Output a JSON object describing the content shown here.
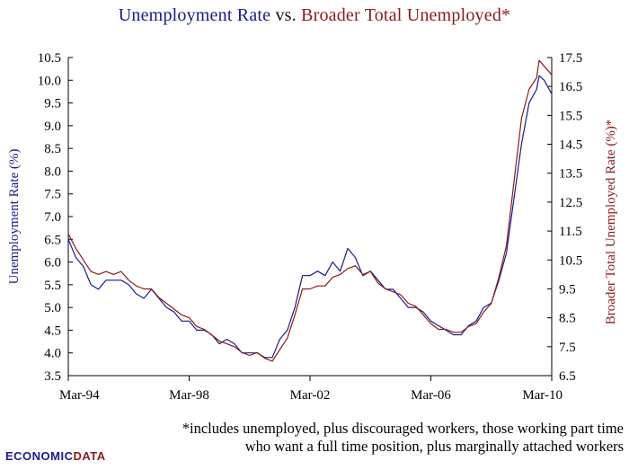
{
  "title": {
    "part_a": "Unemployment Rate",
    "part_b": " vs. ",
    "part_c": "Broader Total Unemployed*"
  },
  "footnote": {
    "line1": "*includes unemployed, plus discouraged workers, those working part time",
    "line2": "who want a full time position, plus marginally attached workers"
  },
  "logo": {
    "part_a": "ECONOMIC",
    "part_b": "DATA"
  },
  "colors": {
    "unemployment": "#1a1a8c",
    "broader": "#8b1a1a",
    "axis": "#000000"
  },
  "chart_data": {
    "type": "line",
    "xlabel": "",
    "x_tick_labels": [
      "Mar-94",
      "Mar-98",
      "Mar-02",
      "Mar-06",
      "Mar-10"
    ],
    "x_range": [
      "1994-03",
      "2010-03"
    ],
    "grid": false,
    "legend": "none",
    "left_axis": {
      "label": "Unemployment Rate (%)",
      "ylim": [
        3.5,
        10.5
      ],
      "ticks": [
        "3.5",
        "4.0",
        "4.5",
        "5.0",
        "5.5",
        "6.0",
        "6.5",
        "7.0",
        "7.5",
        "8.0",
        "8.5",
        "9.0",
        "9.5",
        "10.0",
        "10.5"
      ]
    },
    "right_axis": {
      "label": "Broader Total Unemployed Rate (%)*",
      "ylim": [
        6.5,
        17.5
      ],
      "ticks": [
        "6.5",
        "7.5",
        "8.5",
        "9.5",
        "10.5",
        "11.5",
        "12.5",
        "13.5",
        "14.5",
        "15.5",
        "16.5",
        "17.5"
      ]
    },
    "series": [
      {
        "name": "Unemployment Rate",
        "axis": "left",
        "x": [
          "1994-03",
          "1994-06",
          "1994-09",
          "1994-12",
          "1995-03",
          "1995-06",
          "1995-09",
          "1995-12",
          "1996-03",
          "1996-06",
          "1996-09",
          "1996-12",
          "1997-03",
          "1997-06",
          "1997-09",
          "1997-12",
          "1998-03",
          "1998-06",
          "1998-09",
          "1998-12",
          "1999-03",
          "1999-06",
          "1999-09",
          "1999-12",
          "2000-03",
          "2000-06",
          "2000-09",
          "2000-12",
          "2001-03",
          "2001-06",
          "2001-09",
          "2001-12",
          "2002-03",
          "2002-06",
          "2002-09",
          "2002-12",
          "2003-03",
          "2003-06",
          "2003-09",
          "2003-12",
          "2004-03",
          "2004-06",
          "2004-09",
          "2004-12",
          "2005-03",
          "2005-06",
          "2005-09",
          "2005-12",
          "2006-03",
          "2006-06",
          "2006-09",
          "2006-12",
          "2007-03",
          "2007-06",
          "2007-09",
          "2007-12",
          "2008-03",
          "2008-06",
          "2008-09",
          "2008-12",
          "2009-03",
          "2009-06",
          "2009-09",
          "2009-10",
          "2009-12",
          "2010-03"
        ],
        "values": [
          6.5,
          6.1,
          5.9,
          5.5,
          5.4,
          5.6,
          5.6,
          5.6,
          5.5,
          5.3,
          5.2,
          5.4,
          5.2,
          5.0,
          4.9,
          4.7,
          4.7,
          4.5,
          4.5,
          4.4,
          4.2,
          4.3,
          4.2,
          4.0,
          4.0,
          4.0,
          3.9,
          3.9,
          4.3,
          4.5,
          5.0,
          5.7,
          5.7,
          5.8,
          5.7,
          6.0,
          5.8,
          6.3,
          6.1,
          5.7,
          5.8,
          5.6,
          5.4,
          5.4,
          5.2,
          5.0,
          5.0,
          4.9,
          4.7,
          4.6,
          4.5,
          4.4,
          4.4,
          4.6,
          4.7,
          5.0,
          5.1,
          5.6,
          6.2,
          7.4,
          8.6,
          9.5,
          9.8,
          10.1,
          10.0,
          9.7
        ]
      },
      {
        "name": "Broader Total Unemployed",
        "axis": "right",
        "x": [
          "1994-03",
          "1994-06",
          "1994-09",
          "1994-12",
          "1995-03",
          "1995-06",
          "1995-09",
          "1995-12",
          "1996-03",
          "1996-06",
          "1996-09",
          "1996-12",
          "1997-03",
          "1997-06",
          "1997-09",
          "1997-12",
          "1998-03",
          "1998-06",
          "1998-09",
          "1998-12",
          "1999-03",
          "1999-06",
          "1999-09",
          "1999-12",
          "2000-03",
          "2000-06",
          "2000-09",
          "2000-12",
          "2001-03",
          "2001-06",
          "2001-09",
          "2001-12",
          "2002-03",
          "2002-06",
          "2002-09",
          "2002-12",
          "2003-03",
          "2003-06",
          "2003-09",
          "2003-12",
          "2004-03",
          "2004-06",
          "2004-09",
          "2004-12",
          "2005-03",
          "2005-06",
          "2005-09",
          "2005-12",
          "2006-03",
          "2006-06",
          "2006-09",
          "2006-12",
          "2007-03",
          "2007-06",
          "2007-09",
          "2007-12",
          "2008-03",
          "2008-06",
          "2008-09",
          "2008-12",
          "2009-03",
          "2009-06",
          "2009-09",
          "2009-10",
          "2009-12",
          "2010-03"
        ],
        "values": [
          11.4,
          10.9,
          10.5,
          10.1,
          10.0,
          10.1,
          10.0,
          10.1,
          9.8,
          9.6,
          9.5,
          9.5,
          9.2,
          9.0,
          8.8,
          8.6,
          8.5,
          8.2,
          8.1,
          7.9,
          7.7,
          7.6,
          7.5,
          7.3,
          7.2,
          7.3,
          7.1,
          7.0,
          7.4,
          7.8,
          8.6,
          9.5,
          9.5,
          9.6,
          9.6,
          9.9,
          10.0,
          10.2,
          10.3,
          10.0,
          10.1,
          9.7,
          9.5,
          9.4,
          9.3,
          9.0,
          8.9,
          8.6,
          8.3,
          8.1,
          8.1,
          8.0,
          8.0,
          8.2,
          8.3,
          8.7,
          9.0,
          9.9,
          11.0,
          13.2,
          15.4,
          16.4,
          16.8,
          17.4,
          17.2,
          16.9
        ]
      }
    ]
  }
}
